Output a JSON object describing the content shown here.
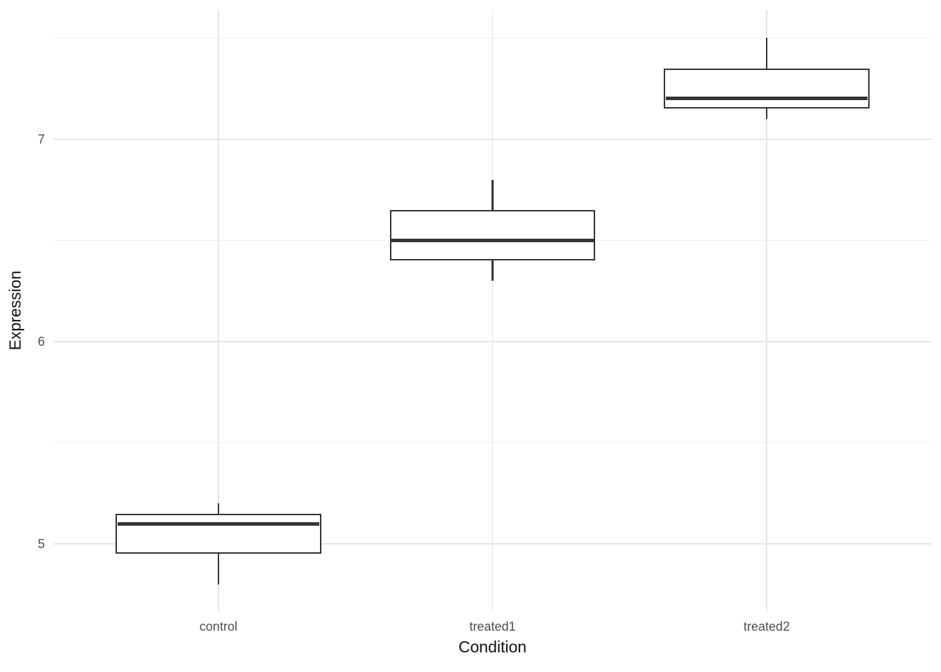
{
  "figure": {
    "x_axis_title": "Condition",
    "y_axis_title": "Expression"
  },
  "chart_data": {
    "type": "boxplot",
    "title": "",
    "xlabel": "Condition",
    "ylabel": "Expression",
    "categories": [
      "control",
      "treated1",
      "treated2"
    ],
    "series": [
      {
        "name": "control",
        "min": 4.8,
        "q1": 4.95,
        "median": 5.1,
        "q3": 5.15,
        "max": 5.2,
        "outliers": []
      },
      {
        "name": "treated1",
        "min": 6.3,
        "q1": 6.4,
        "median": 6.5,
        "q3": 6.65,
        "max": 6.8,
        "outliers": []
      },
      {
        "name": "treated2",
        "min": 7.1,
        "q1": 7.15,
        "median": 7.2,
        "q3": 7.35,
        "max": 7.5,
        "outliers": []
      }
    ],
    "ylim": [
      4.668,
      7.639
    ],
    "y_major_ticks": [
      5,
      6,
      7
    ],
    "y_minor_ticks": [
      5.5,
      6.5,
      7.5
    ],
    "grid": true,
    "legend": false,
    "style": {
      "box_color": "#333333",
      "box_fill": "#ffffff",
      "grid_major_color": "#e4e4e4",
      "grid_minor_color": "#efefef",
      "tick_label_color": "#4d4d4d",
      "axis_title_color": "#111111",
      "background": "#ffffff",
      "box_width_units": 0.75
    }
  }
}
